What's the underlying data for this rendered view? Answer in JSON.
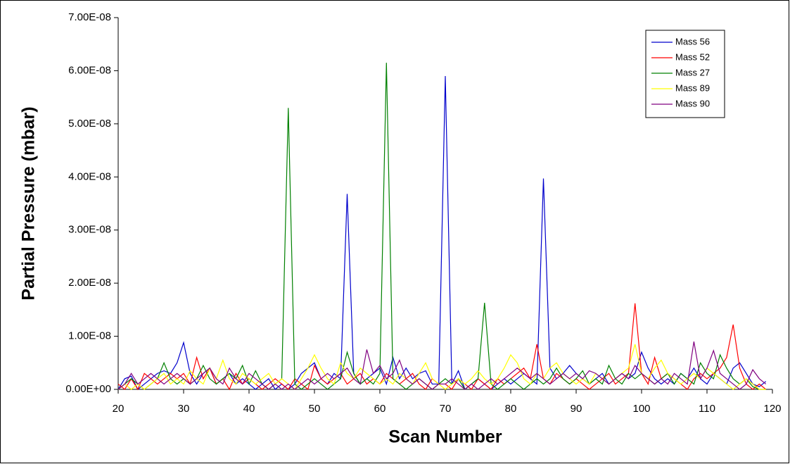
{
  "chart_data": {
    "type": "line",
    "x_label": "Scan Number",
    "y_label": "Partial Pressure (mbar)",
    "x": [
      20,
      21,
      22,
      23,
      24,
      25,
      26,
      27,
      28,
      29,
      30,
      31,
      32,
      33,
      34,
      35,
      36,
      37,
      38,
      39,
      40,
      41,
      42,
      43,
      44,
      45,
      46,
      47,
      48,
      49,
      50,
      51,
      52,
      53,
      54,
      55,
      56,
      57,
      58,
      59,
      60,
      61,
      62,
      63,
      64,
      65,
      66,
      67,
      68,
      69,
      70,
      71,
      72,
      73,
      74,
      75,
      76,
      77,
      78,
      79,
      80,
      81,
      82,
      83,
      84,
      85,
      86,
      87,
      88,
      89,
      90,
      91,
      92,
      93,
      94,
      95,
      96,
      97,
      98,
      99,
      100,
      101,
      102,
      103,
      104,
      105,
      106,
      107,
      108,
      109,
      110,
      111,
      112,
      113,
      114,
      115,
      116,
      117,
      118,
      119
    ],
    "xlim": [
      20,
      120
    ],
    "xticks": [
      20,
      30,
      40,
      50,
      60,
      70,
      80,
      90,
      100,
      110,
      120
    ],
    "ylim": [
      0,
      7e-08
    ],
    "yticks": [
      {
        "value": 0,
        "label": "0.00E+00"
      },
      {
        "value": 1e-08,
        "label": "1.00E-08"
      },
      {
        "value": 2e-08,
        "label": "2.00E-08"
      },
      {
        "value": 3e-08,
        "label": "3.00E-08"
      },
      {
        "value": 4e-08,
        "label": "4.00E-08"
      },
      {
        "value": 5e-08,
        "label": "5.00E-08"
      },
      {
        "value": 6e-08,
        "label": "6.00E-08"
      },
      {
        "value": 7e-08,
        "label": "7.00E-08"
      }
    ],
    "legend": "top-right",
    "series": [
      {
        "name": "Mass 56",
        "color": "#0000cc",
        "values": [
          0,
          2e-09,
          2.5e-09,
          0,
          1e-09,
          2e-09,
          3e-09,
          3.5e-09,
          3e-09,
          5e-09,
          8.8e-09,
          3e-09,
          1e-09,
          3e-09,
          4e-09,
          1e-09,
          2e-09,
          3e-09,
          1e-09,
          2e-09,
          1e-09,
          0,
          1e-09,
          2e-09,
          0,
          1e-09,
          0,
          1e-09,
          3e-09,
          4e-09,
          5e-09,
          2e-09,
          1e-09,
          3e-09,
          2e-09,
          3.68e-08,
          3e-09,
          1e-09,
          2e-09,
          3e-09,
          4e-09,
          1e-09,
          6e-09,
          2e-09,
          4e-09,
          2e-09,
          3e-09,
          3.5e-09,
          1e-09,
          1e-09,
          5.9e-08,
          1e-09,
          3.5e-09,
          0,
          1e-09,
          2e-09,
          1e-09,
          0,
          1e-09,
          2e-09,
          1e-09,
          2e-09,
          3e-09,
          2e-09,
          1e-09,
          3.97e-08,
          4e-09,
          2e-09,
          3e-09,
          4.5e-09,
          3e-09,
          2e-09,
          1e-09,
          2e-09,
          3e-09,
          1e-09,
          2e-09,
          3e-09,
          2e-09,
          3e-09,
          7e-09,
          4e-09,
          2e-09,
          1e-09,
          2e-09,
          1e-09,
          3e-09,
          2e-09,
          4e-09,
          2e-09,
          1e-09,
          3e-09,
          2e-09,
          1e-09,
          4e-09,
          5e-09,
          3e-09,
          1e-09,
          5e-10,
          1.5e-09
        ]
      },
      {
        "name": "Mass 52",
        "color": "#ff0000",
        "values": [
          1e-09,
          0,
          2e-09,
          0,
          3e-09,
          2e-09,
          1e-09,
          2e-09,
          3e-09,
          2e-09,
          3e-09,
          1e-09,
          6e-09,
          2e-09,
          4e-09,
          1e-09,
          2e-09,
          0,
          3e-09,
          1e-09,
          2e-09,
          1e-09,
          0,
          1e-09,
          2e-09,
          1e-09,
          0,
          2e-09,
          1e-09,
          0,
          4.5e-09,
          2e-09,
          1e-09,
          2e-09,
          3e-09,
          1e-09,
          2e-09,
          3e-09,
          1e-09,
          2e-09,
          1e-09,
          3e-09,
          2e-09,
          1e-09,
          2e-09,
          3e-09,
          1e-09,
          0,
          2e-09,
          1e-09,
          1e-09,
          0,
          2e-09,
          1e-09,
          0,
          2e-09,
          1e-09,
          0,
          2e-09,
          1e-09,
          2e-09,
          3e-09,
          4e-09,
          2e-09,
          8.5e-09,
          2e-09,
          1e-09,
          3e-09,
          2e-09,
          1e-09,
          2e-09,
          1e-09,
          0,
          1e-09,
          2e-09,
          3e-09,
          1e-09,
          2e-09,
          3e-09,
          1.62e-08,
          3e-09,
          1e-09,
          6e-09,
          2e-09,
          3e-09,
          2e-09,
          1e-09,
          0,
          2e-09,
          3e-09,
          2e-09,
          3e-09,
          4e-09,
          6e-09,
          1.22e-08,
          4e-09,
          1e-09,
          0,
          1e-09,
          0
        ]
      },
      {
        "name": "Mass 27",
        "color": "#008000",
        "values": [
          0,
          1e-09,
          2e-09,
          1e-09,
          0,
          1e-09,
          2e-09,
          5e-09,
          2e-09,
          1e-09,
          2e-09,
          1e-09,
          2e-09,
          4.5e-09,
          2e-09,
          1e-09,
          2e-09,
          3e-09,
          2e-09,
          4.5e-09,
          1e-09,
          3.5e-09,
          1e-09,
          0,
          1e-09,
          2e-09,
          5.3e-08,
          1e-09,
          0,
          1e-09,
          2e-09,
          1e-09,
          0,
          1e-09,
          2e-09,
          7e-09,
          3e-09,
          1e-09,
          2e-09,
          1e-09,
          3e-09,
          6.15e-08,
          2e-09,
          1e-09,
          0,
          1e-09,
          2e-09,
          1e-09,
          0,
          1e-09,
          2e-09,
          1e-09,
          2e-09,
          0,
          1e-09,
          2e-09,
          1.63e-08,
          1e-09,
          0,
          1e-09,
          2e-09,
          1e-09,
          0,
          1e-09,
          2e-09,
          1e-09,
          2e-09,
          4e-09,
          2e-09,
          1e-09,
          2e-09,
          3.5e-09,
          1e-09,
          2e-09,
          1e-09,
          4.5e-09,
          2e-09,
          1e-09,
          3e-09,
          2e-09,
          3e-09,
          2e-09,
          1e-09,
          2e-09,
          3e-09,
          1e-09,
          3e-09,
          2e-09,
          1e-09,
          5e-09,
          3e-09,
          2e-09,
          6.5e-09,
          4e-09,
          2e-09,
          1e-09,
          2e-09,
          5e-10,
          0,
          0
        ]
      },
      {
        "name": "Mass 89",
        "color": "#ffff00",
        "values": [
          0,
          1e-09,
          0,
          1e-09,
          0,
          1e-09,
          2e-09,
          3e-09,
          1e-09,
          2e-09,
          1e-09,
          3.5e-09,
          2e-09,
          1e-09,
          4e-09,
          2e-09,
          5.5e-09,
          2e-09,
          1e-09,
          3e-09,
          2e-09,
          1e-09,
          2e-09,
          3e-09,
          1e-09,
          2e-09,
          1e-09,
          0,
          2e-09,
          4e-09,
          6.5e-09,
          4e-09,
          2e-09,
          1e-09,
          5e-09,
          3e-09,
          2e-09,
          4e-09,
          3e-09,
          2e-09,
          1e-09,
          2e-09,
          1e-09,
          3e-09,
          2e-09,
          1e-09,
          3e-09,
          5e-09,
          2e-09,
          1e-09,
          0,
          1e-09,
          2e-09,
          1e-09,
          2e-09,
          3.5e-09,
          2e-09,
          1e-09,
          2e-09,
          4e-09,
          6.5e-09,
          5e-09,
          2e-09,
          1e-09,
          3e-09,
          2e-09,
          4e-09,
          5e-09,
          3e-09,
          2e-09,
          1e-09,
          2e-09,
          1e-09,
          3e-09,
          2e-09,
          1e-09,
          2e-09,
          3e-09,
          4e-09,
          8.5e-09,
          3e-09,
          2e-09,
          4e-09,
          5.5e-09,
          3e-09,
          2e-09,
          1e-09,
          2e-09,
          3e-09,
          2e-09,
          4e-09,
          3e-09,
          2e-09,
          1e-09,
          0,
          1e-09,
          2e-09,
          1e-09,
          0,
          0
        ]
      },
      {
        "name": "Mass 90",
        "color": "#800080",
        "values": [
          0,
          1e-09,
          3e-09,
          1e-09,
          2e-09,
          3e-09,
          2e-09,
          1e-09,
          2e-09,
          3e-09,
          2e-09,
          1e-09,
          2e-09,
          3e-09,
          4e-09,
          2e-09,
          1e-09,
          4e-09,
          2e-09,
          1e-09,
          3e-09,
          2e-09,
          1e-09,
          0,
          1e-09,
          0,
          1e-09,
          0,
          1e-09,
          2e-09,
          1e-09,
          2e-09,
          3e-09,
          2e-09,
          3e-09,
          4e-09,
          2e-09,
          1e-09,
          7.5e-09,
          3e-09,
          4.5e-09,
          2e-09,
          3e-09,
          5.5e-09,
          2e-09,
          1e-09,
          2e-09,
          1e-09,
          0,
          1e-09,
          1e-09,
          2e-09,
          1e-09,
          0,
          1e-09,
          0,
          1e-09,
          2e-09,
          1e-09,
          2e-09,
          3e-09,
          4e-09,
          3e-09,
          2e-09,
          3e-09,
          2e-09,
          1e-09,
          2e-09,
          3e-09,
          2e-09,
          3e-09,
          2e-09,
          3.5e-09,
          3e-09,
          2e-09,
          1e-09,
          2e-09,
          3e-09,
          2e-09,
          4.5e-09,
          3e-09,
          2e-09,
          1e-09,
          2e-09,
          1e-09,
          3e-09,
          2e-09,
          1e-09,
          9e-09,
          2e-09,
          4e-09,
          7.3e-09,
          3e-09,
          2e-09,
          1e-09,
          0,
          1e-09,
          3.7e-09,
          2e-09,
          1e-09
        ]
      }
    ]
  }
}
